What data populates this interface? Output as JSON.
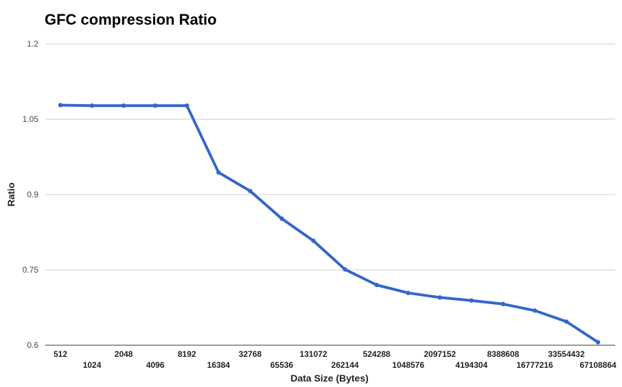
{
  "chart_data": {
    "type": "line",
    "title": "GFC compression Ratio",
    "xlabel": "Data Size (Bytes)",
    "ylabel": "Ratio",
    "categories": [
      "512",
      "1024",
      "2048",
      "4096",
      "8192",
      "16384",
      "32768",
      "65536",
      "131072",
      "262144",
      "524288",
      "1048576",
      "2097152",
      "4194304",
      "8388608",
      "16777216",
      "33554432",
      "67108864"
    ],
    "series": [
      {
        "values": [
          1.078,
          1.077,
          1.077,
          1.077,
          1.077,
          0.944,
          0.907,
          0.852,
          0.808,
          0.751,
          0.72,
          0.704,
          0.695,
          0.689,
          0.682,
          0.669,
          0.647,
          0.606
        ],
        "color": "#3366cc"
      }
    ],
    "ylim": [
      0.6,
      1.2
    ],
    "yticks": [
      "0.6",
      "0.75",
      "0.9",
      "1.05",
      "1.2"
    ],
    "grid": true,
    "legend": "none"
  }
}
